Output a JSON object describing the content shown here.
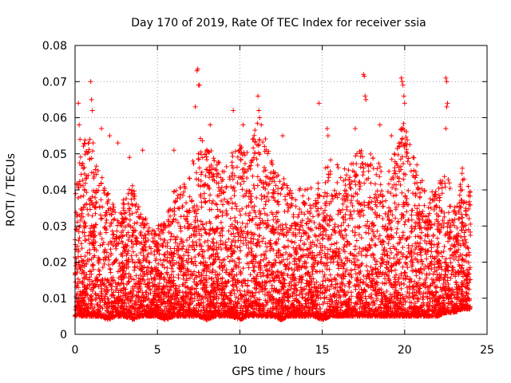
{
  "chart_data": {
    "type": "scatter",
    "title": "Day 170 of 2019, Rate Of TEC Index for receiver ssia",
    "xlabel": "GPS time / hours",
    "ylabel": "ROTI / TECUs",
    "xlim": [
      0,
      25
    ],
    "ylim": [
      0,
      0.08
    ],
    "xticks": [
      0,
      5,
      10,
      15,
      20,
      25
    ],
    "xtick_labels": [
      "0",
      "5",
      "10",
      "15",
      "20",
      "25"
    ],
    "yticks": [
      0,
      0.01,
      0.02,
      0.03,
      0.04,
      0.05,
      0.06,
      0.07,
      0.08
    ],
    "ytick_labels": [
      "0",
      "0.01",
      "0.02",
      "0.03",
      "0.04",
      "0.05",
      "0.06",
      "0.07",
      "0.08"
    ],
    "grid": true,
    "marker": "+",
    "color": "#ff0000",
    "data_extent_hours": [
      0,
      24
    ],
    "envelope": {
      "x": [
        0,
        0.5,
        1,
        1.5,
        2,
        2.5,
        3,
        3.5,
        4,
        4.5,
        5,
        5.5,
        6,
        6.5,
        7,
        7.5,
        8,
        8.5,
        9,
        9.5,
        10,
        10.5,
        11,
        11.5,
        12,
        12.5,
        13,
        13.5,
        14,
        14.5,
        15,
        15.5,
        16,
        16.5,
        17,
        17.5,
        18,
        18.5,
        19,
        19.5,
        20,
        20.5,
        21,
        21.5,
        22,
        22.5,
        23,
        23.5,
        24
      ],
      "upper": [
        0.04,
        0.055,
        0.052,
        0.045,
        0.04,
        0.035,
        0.038,
        0.042,
        0.035,
        0.03,
        0.03,
        0.032,
        0.04,
        0.042,
        0.045,
        0.055,
        0.052,
        0.05,
        0.045,
        0.05,
        0.055,
        0.05,
        0.06,
        0.055,
        0.048,
        0.045,
        0.04,
        0.04,
        0.042,
        0.04,
        0.045,
        0.05,
        0.048,
        0.045,
        0.055,
        0.05,
        0.05,
        0.048,
        0.045,
        0.055,
        0.06,
        0.05,
        0.045,
        0.04,
        0.04,
        0.048,
        0.035,
        0.045,
        0.04
      ],
      "lower": [
        0.005,
        0.005,
        0.005,
        0.005,
        0.004,
        0.005,
        0.005,
        0.004,
        0.005,
        0.005,
        0.005,
        0.004,
        0.005,
        0.005,
        0.005,
        0.005,
        0.004,
        0.005,
        0.005,
        0.005,
        0.004,
        0.005,
        0.005,
        0.005,
        0.005,
        0.004,
        0.005,
        0.005,
        0.005,
        0.005,
        0.004,
        0.005,
        0.005,
        0.005,
        0.005,
        0.005,
        0.005,
        0.005,
        0.005,
        0.005,
        0.005,
        0.005,
        0.005,
        0.005,
        0.005,
        0.006,
        0.006,
        0.007,
        0.007
      ]
    },
    "outliers": [
      {
        "x": 0.2,
        "y": 0.064
      },
      {
        "x": 0.25,
        "y": 0.058
      },
      {
        "x": 0.3,
        "y": 0.054
      },
      {
        "x": 0.95,
        "y": 0.07
      },
      {
        "x": 1.0,
        "y": 0.065
      },
      {
        "x": 1.05,
        "y": 0.062
      },
      {
        "x": 0.9,
        "y": 0.054
      },
      {
        "x": 1.1,
        "y": 0.053
      },
      {
        "x": 1.6,
        "y": 0.057
      },
      {
        "x": 2.1,
        "y": 0.055
      },
      {
        "x": 2.6,
        "y": 0.053
      },
      {
        "x": 3.3,
        "y": 0.049
      },
      {
        "x": 4.1,
        "y": 0.051
      },
      {
        "x": 7.4,
        "y": 0.073
      },
      {
        "x": 7.45,
        "y": 0.0735
      },
      {
        "x": 7.5,
        "y": 0.069
      },
      {
        "x": 7.55,
        "y": 0.069
      },
      {
        "x": 6.0,
        "y": 0.051
      },
      {
        "x": 7.3,
        "y": 0.063
      },
      {
        "x": 8.2,
        "y": 0.058
      },
      {
        "x": 9.6,
        "y": 0.062
      },
      {
        "x": 10.2,
        "y": 0.058
      },
      {
        "x": 11.1,
        "y": 0.066
      },
      {
        "x": 11.15,
        "y": 0.062
      },
      {
        "x": 11.2,
        "y": 0.06
      },
      {
        "x": 11.3,
        "y": 0.058
      },
      {
        "x": 12.6,
        "y": 0.055
      },
      {
        "x": 14.8,
        "y": 0.064
      },
      {
        "x": 15.3,
        "y": 0.057
      },
      {
        "x": 15.35,
        "y": 0.055
      },
      {
        "x": 17.0,
        "y": 0.057
      },
      {
        "x": 17.5,
        "y": 0.072
      },
      {
        "x": 17.55,
        "y": 0.0715
      },
      {
        "x": 17.6,
        "y": 0.066
      },
      {
        "x": 17.65,
        "y": 0.065
      },
      {
        "x": 18.5,
        "y": 0.058
      },
      {
        "x": 19.2,
        "y": 0.055
      },
      {
        "x": 19.8,
        "y": 0.071
      },
      {
        "x": 19.85,
        "y": 0.07
      },
      {
        "x": 19.9,
        "y": 0.069
      },
      {
        "x": 19.95,
        "y": 0.066
      },
      {
        "x": 20.0,
        "y": 0.064
      },
      {
        "x": 22.5,
        "y": 0.071
      },
      {
        "x": 22.55,
        "y": 0.07
      },
      {
        "x": 22.6,
        "y": 0.064
      },
      {
        "x": 22.55,
        "y": 0.063
      },
      {
        "x": 22.5,
        "y": 0.057
      },
      {
        "x": 23.5,
        "y": 0.046
      },
      {
        "x": 23.6,
        "y": 0.043
      }
    ]
  }
}
